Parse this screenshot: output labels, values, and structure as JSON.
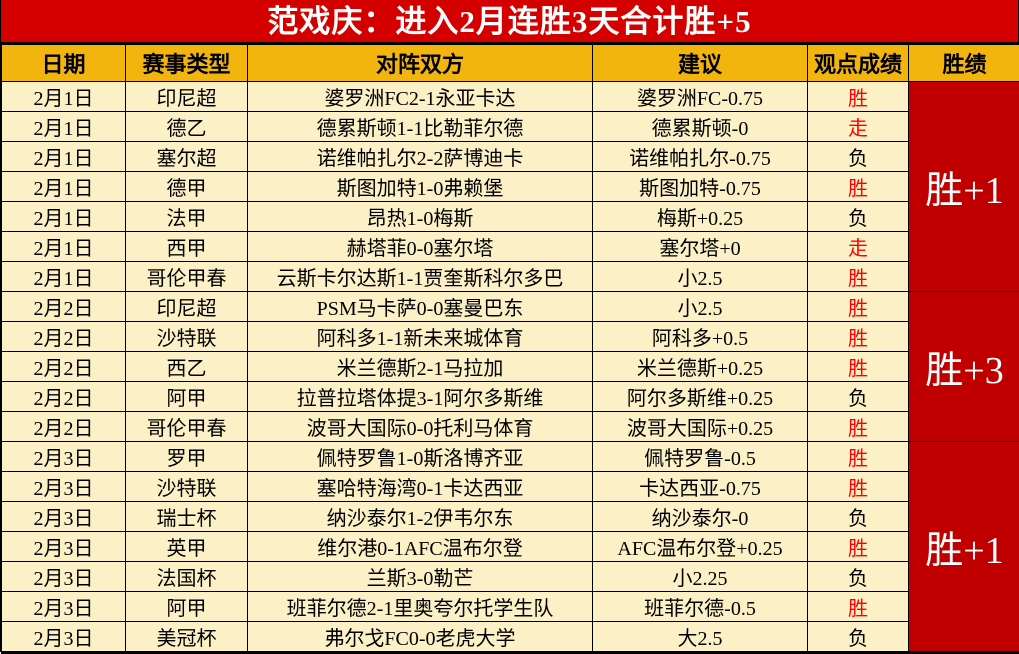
{
  "title": "范戏庆：进入2月连胜3天合计胜+5",
  "colors": {
    "title_bg": "#D40000",
    "title_text": "#FFFFFF",
    "header_bg": "#F2B50E",
    "row_bg": "#FCF0C6",
    "streak_bg": "#C00000",
    "streak_text": "#FFFFFF",
    "win_red": "#FF0000",
    "text_black": "#000000"
  },
  "table": {
    "headers": [
      "日期",
      "赛事类型",
      "对阵双方",
      "建议",
      "观点成绩",
      "胜绩"
    ],
    "rows": [
      {
        "date": "2月1日",
        "league": "印尼超",
        "match": "婆罗洲FC2-1永亚卡达",
        "advice": "婆罗洲FC-0.75",
        "result": "胜",
        "result_color": "#FF0000"
      },
      {
        "date": "2月1日",
        "league": "德乙",
        "match": "德累斯顿1-1比勒菲尔德",
        "advice": "德累斯顿-0",
        "result": "走",
        "result_color": "#FF0000"
      },
      {
        "date": "2月1日",
        "league": "塞尔超",
        "match": "诺维帕扎尔2-2萨博迪卡",
        "advice": "诺维帕扎尔-0.75",
        "result": "负",
        "result_color": "#000000"
      },
      {
        "date": "2月1日",
        "league": "德甲",
        "match": "斯图加特1-0弗赖堡",
        "advice": "斯图加特-0.75",
        "result": "胜",
        "result_color": "#FF0000"
      },
      {
        "date": "2月1日",
        "league": "法甲",
        "match": "昂热1-0梅斯",
        "advice": "梅斯+0.25",
        "result": "负",
        "result_color": "#000000"
      },
      {
        "date": "2月1日",
        "league": "西甲",
        "match": "赫塔菲0-0塞尔塔",
        "advice": "塞尔塔+0",
        "result": "走",
        "result_color": "#FF0000"
      },
      {
        "date": "2月1日",
        "league": "哥伦甲春",
        "match": "云斯卡尔达斯1-1贾奎斯科尔多巴",
        "advice": "小2.5",
        "result": "胜",
        "result_color": "#FF0000"
      },
      {
        "date": "2月2日",
        "league": "印尼超",
        "match": "PSM马卡萨0-0塞曼巴东",
        "advice": "小2.5",
        "result": "胜",
        "result_color": "#FF0000"
      },
      {
        "date": "2月2日",
        "league": "沙特联",
        "match": "阿科多1-1新未来城体育",
        "advice": "阿科多+0.5",
        "result": "胜",
        "result_color": "#FF0000"
      },
      {
        "date": "2月2日",
        "league": "西乙",
        "match": "米兰德斯2-1马拉加",
        "advice": "米兰德斯+0.25",
        "result": "胜",
        "result_color": "#FF0000"
      },
      {
        "date": "2月2日",
        "league": "阿甲",
        "match": "拉普拉塔体提3-1阿尔多斯维",
        "advice": "阿尔多斯维+0.25",
        "result": "负",
        "result_color": "#000000"
      },
      {
        "date": "2月2日",
        "league": "哥伦甲春",
        "match": "波哥大国际0-0托利马体育",
        "advice": "波哥大国际+0.25",
        "result": "胜",
        "result_color": "#FF0000"
      },
      {
        "date": "2月3日",
        "league": "罗甲",
        "match": "佩特罗鲁1-0斯洛博齐亚",
        "advice": "佩特罗鲁-0.5",
        "result": "胜",
        "result_color": "#FF0000"
      },
      {
        "date": "2月3日",
        "league": "沙特联",
        "match": "塞哈特海湾0-1卡达西亚",
        "advice": "卡达西亚-0.75",
        "result": "胜",
        "result_color": "#FF0000"
      },
      {
        "date": "2月3日",
        "league": "瑞士杯",
        "match": "纳沙泰尔1-2伊韦尔东",
        "advice": "纳沙泰尔-0",
        "result": "负",
        "result_color": "#000000"
      },
      {
        "date": "2月3日",
        "league": "英甲",
        "match": "维尔港0-1AFC温布尔登",
        "advice": "AFC温布尔登+0.25",
        "result": "胜",
        "result_color": "#FF0000"
      },
      {
        "date": "2月3日",
        "league": "法国杯",
        "match": "兰斯3-0勒芒",
        "advice": "小2.25",
        "result": "负",
        "result_color": "#000000"
      },
      {
        "date": "2月3日",
        "league": "阿甲",
        "match": "班菲尔德2-1里奥夸尔托学生队",
        "advice": "班菲尔德-0.5",
        "result": "胜",
        "result_color": "#FF0000"
      },
      {
        "date": "2月3日",
        "league": "美冠杯",
        "match": "弗尔戈FC0-0老虎大学",
        "advice": "大2.5",
        "result": "负",
        "result_color": "#000000"
      }
    ],
    "groups": [
      {
        "start": 0,
        "span": 7,
        "label": "胜+1"
      },
      {
        "start": 7,
        "span": 5,
        "label": "胜+3"
      },
      {
        "start": 12,
        "span": 7,
        "label": "胜+1"
      }
    ]
  }
}
